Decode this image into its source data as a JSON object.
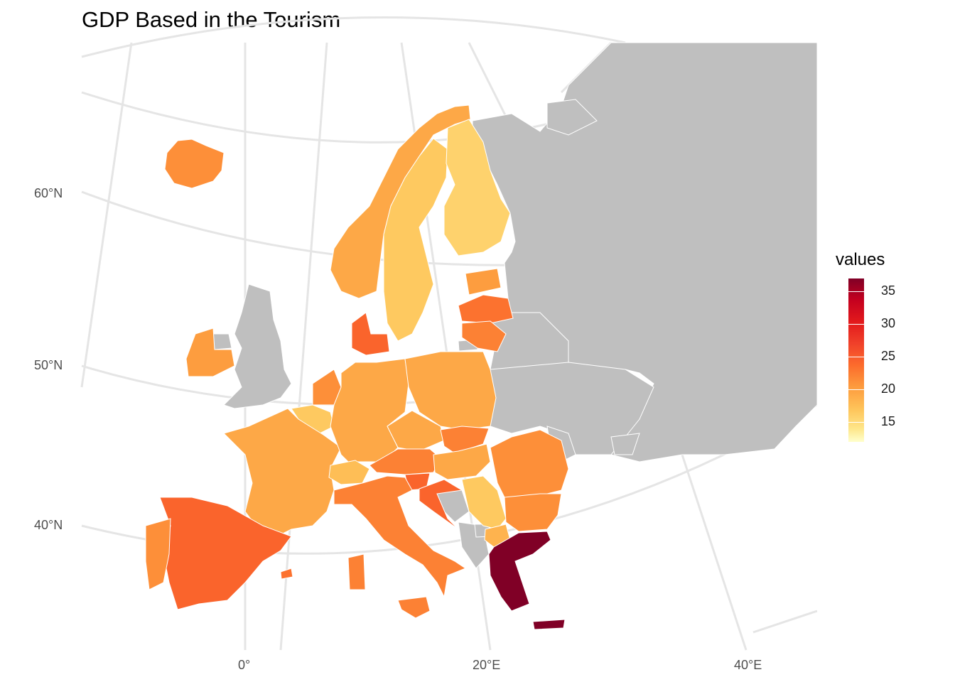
{
  "title": "GDP Based in the Tourism",
  "legend": {
    "title": "values",
    "ticks": [
      "35",
      "30",
      "25",
      "20",
      "15"
    ],
    "tick_values": [
      35,
      30,
      25,
      20,
      15
    ],
    "range": [
      12,
      37
    ],
    "low_color": "#ffffcc",
    "high_color": "#800026"
  },
  "axes": {
    "lat_labels": [
      "60°N",
      "50°N",
      "40°N"
    ],
    "lon_labels": [
      "0°",
      "20°E",
      "40°E"
    ]
  },
  "colors": {
    "no_data": "#bfbfbf",
    "grid": "#e5e5e5",
    "border": "#ffffff"
  },
  "regions": [
    {
      "name": "iceland",
      "value": 24
    },
    {
      "name": "norway",
      "value": 22
    },
    {
      "name": "sweden",
      "value": 19
    },
    {
      "name": "finland",
      "value": 18
    },
    {
      "name": "denmark",
      "value": 27
    },
    {
      "name": "ireland",
      "value": 23
    },
    {
      "name": "netherlands",
      "value": 24
    },
    {
      "name": "belgium",
      "value": 19
    },
    {
      "name": "france",
      "value": 22
    },
    {
      "name": "germany",
      "value": 22
    },
    {
      "name": "poland",
      "value": 22
    },
    {
      "name": "czechia",
      "value": 22
    },
    {
      "name": "slovakia",
      "value": 25
    },
    {
      "name": "austria",
      "value": 25
    },
    {
      "name": "switzerland",
      "value": 20
    },
    {
      "name": "hungary",
      "value": 22
    },
    {
      "name": "slovenia",
      "value": 27
    },
    {
      "name": "croatia",
      "value": 27
    },
    {
      "name": "serbia",
      "value": 19
    },
    {
      "name": "romania",
      "value": 24
    },
    {
      "name": "bulgaria",
      "value": 24
    },
    {
      "name": "north-macedonia",
      "value": 21
    },
    {
      "name": "greece",
      "value": 37
    },
    {
      "name": "italy",
      "value": 25
    },
    {
      "name": "spain",
      "value": 27
    },
    {
      "name": "portugal",
      "value": 24
    },
    {
      "name": "estonia",
      "value": 23
    },
    {
      "name": "latvia",
      "value": 26
    },
    {
      "name": "lithuania",
      "value": 25
    },
    {
      "name": "malta",
      "value": 26
    }
  ]
}
